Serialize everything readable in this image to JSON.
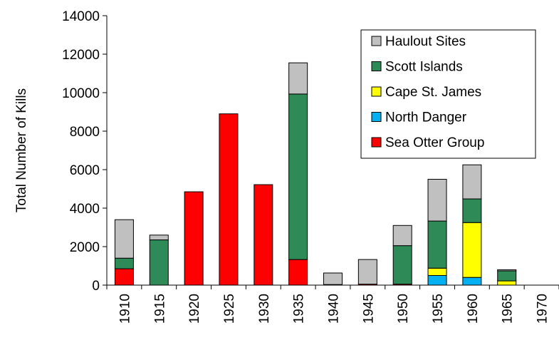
{
  "chart_data": {
    "type": "stacked-bar",
    "y_label": "Total Number of Kills",
    "categories": [
      "1910",
      "1915",
      "1920",
      "1925",
      "1930",
      "1935",
      "1940",
      "1945",
      "1950",
      "1955",
      "1960",
      "1965",
      "1970"
    ],
    "series": [
      {
        "name": "Haulout Sites",
        "color": "#c0c0c0",
        "values": [
          2000,
          250,
          0,
          0,
          0,
          1620,
          600,
          1280,
          1050,
          2170,
          1770,
          60,
          0
        ]
      },
      {
        "name": "Scott Islands",
        "color": "#2e8b57",
        "values": [
          550,
          2350,
          0,
          0,
          0,
          8600,
          0,
          0,
          2000,
          2450,
          1230,
          520,
          0
        ]
      },
      {
        "name": "Cape St. James",
        "color": "#ffff00",
        "values": [
          0,
          0,
          0,
          0,
          0,
          0,
          0,
          0,
          0,
          380,
          2850,
          220,
          0
        ]
      },
      {
        "name": "North Danger",
        "color": "#00b0f0",
        "values": [
          0,
          0,
          0,
          0,
          0,
          0,
          0,
          0,
          0,
          500,
          400,
          0,
          0
        ]
      },
      {
        "name": "Sea Otter Group",
        "color": "#ff0000",
        "values": [
          850,
          0,
          4850,
          8900,
          5220,
          1330,
          30,
          50,
          50,
          0,
          0,
          0,
          0
        ]
      }
    ],
    "ylim": [
      0,
      14000
    ],
    "yticks": [
      0,
      2000,
      4000,
      6000,
      8000,
      10000,
      12000,
      14000
    ]
  }
}
